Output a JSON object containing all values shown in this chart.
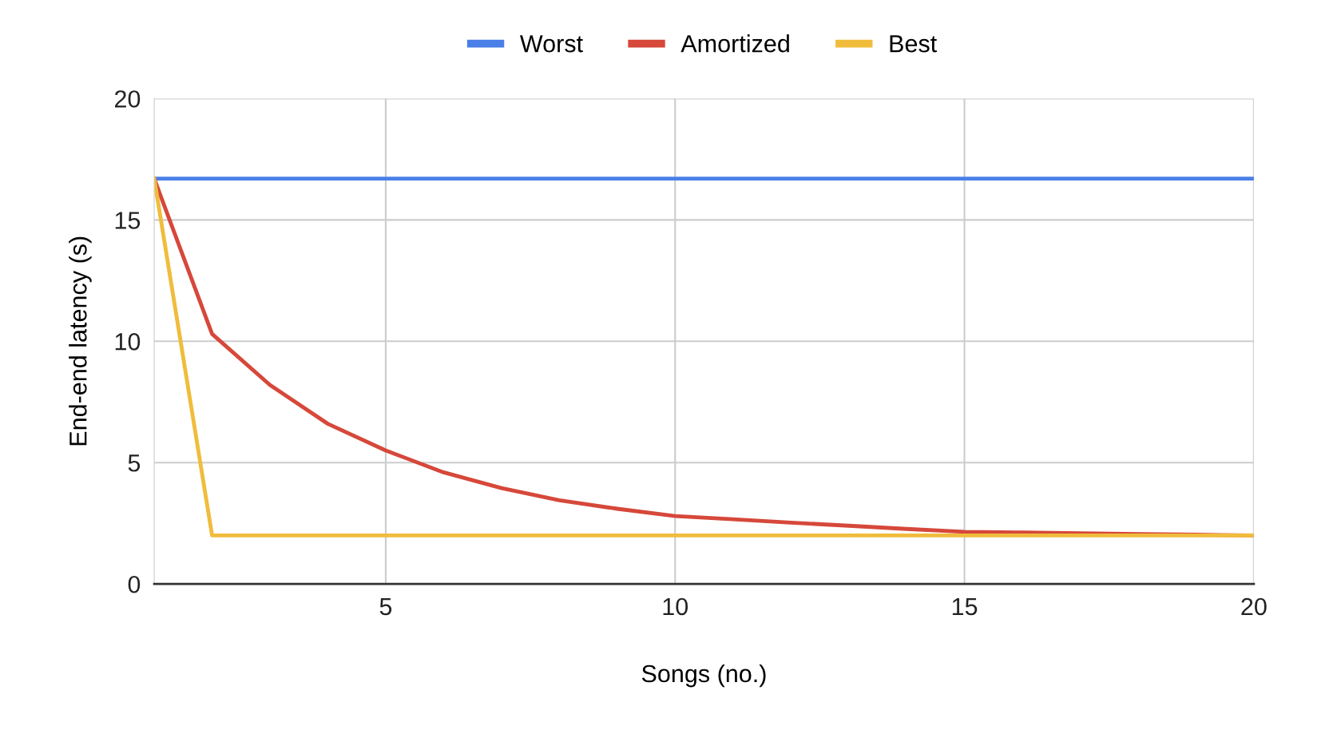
{
  "chart_data": {
    "type": "line",
    "xlabel": "Songs (no.)",
    "ylabel": "End-end latency (s)",
    "x": [
      1,
      2,
      3,
      4,
      5,
      6,
      7,
      8,
      9,
      10,
      11,
      12,
      13,
      14,
      15,
      16,
      17,
      18,
      19,
      20
    ],
    "series": [
      {
        "name": "Worst",
        "color": "#4a7fe8",
        "values": [
          16.7,
          16.7,
          16.7,
          16.7,
          16.7,
          16.7,
          16.7,
          16.7,
          16.7,
          16.7,
          16.7,
          16.7,
          16.7,
          16.7,
          16.7,
          16.7,
          16.7,
          16.7,
          16.7,
          16.7
        ]
      },
      {
        "name": "Amortized",
        "color": "#d6483a",
        "values": [
          16.7,
          10.3,
          8.2,
          6.6,
          5.5,
          4.6,
          3.95,
          3.45,
          3.1,
          2.8,
          2.67,
          2.53,
          2.4,
          2.27,
          2.15,
          2.12,
          2.09,
          2.06,
          2.03,
          2.0
        ]
      },
      {
        "name": "Best",
        "color": "#f0bc3c",
        "values": [
          16.7,
          2.0,
          2.0,
          2.0,
          2.0,
          2.0,
          2.0,
          2.0,
          2.0,
          2.0,
          2.0,
          2.0,
          2.0,
          2.0,
          2.0,
          2.0,
          2.0,
          2.0,
          2.0,
          2.0
        ]
      }
    ],
    "xlim": [
      1,
      20
    ],
    "xticks": [
      5,
      10,
      15,
      20
    ],
    "ylim": [
      0,
      20
    ],
    "yticks": [
      0,
      5,
      10,
      15,
      20
    ],
    "grid": true,
    "legend": "top",
    "marker": "none",
    "line_style": "solid"
  }
}
